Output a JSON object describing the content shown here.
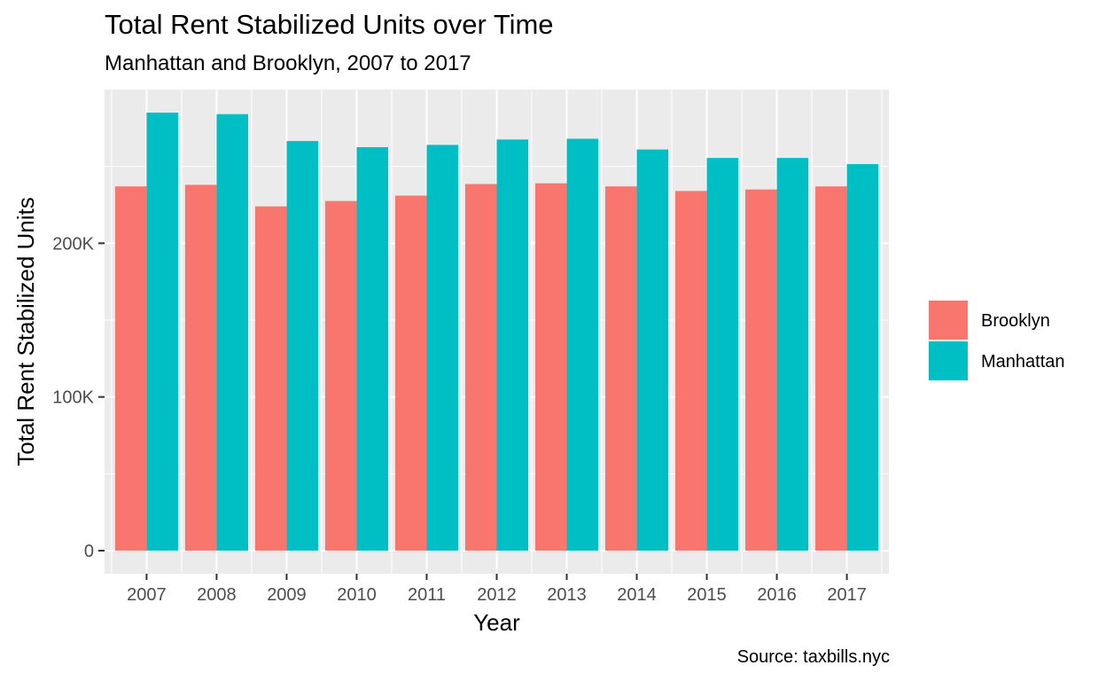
{
  "title": "Total Rent Stabilized Units over Time",
  "subtitle": "Manhattan and Brooklyn, 2007 to 2017",
  "caption": "Source: taxbills.nyc",
  "chart_data": {
    "type": "bar",
    "title": "Total Rent Stabilized Units over Time",
    "subtitle": "Manhattan and Brooklyn, 2007 to 2017",
    "xlabel": "Year",
    "ylabel": "Total Rent Stabilized Units",
    "categories": [
      "2007",
      "2008",
      "2009",
      "2010",
      "2011",
      "2012",
      "2013",
      "2014",
      "2015",
      "2016",
      "2017"
    ],
    "series": [
      {
        "name": "Brooklyn",
        "color": "#F8766D",
        "values": [
          237000,
          238000,
          224000,
          227500,
          231000,
          238500,
          239000,
          237000,
          234000,
          235000,
          237000
        ]
      },
      {
        "name": "Manhattan",
        "color": "#00BFC4",
        "values": [
          285000,
          284000,
          266500,
          262500,
          264000,
          267500,
          268000,
          261000,
          255500,
          255500,
          251500
        ]
      }
    ],
    "ylim": [
      -15000,
      300000
    ],
    "yticks": [
      0,
      100000,
      200000
    ],
    "ytick_labels": [
      "0",
      "100K",
      "200K"
    ],
    "legend": "right",
    "grid": true,
    "panel_background": "#EBEBEB"
  }
}
